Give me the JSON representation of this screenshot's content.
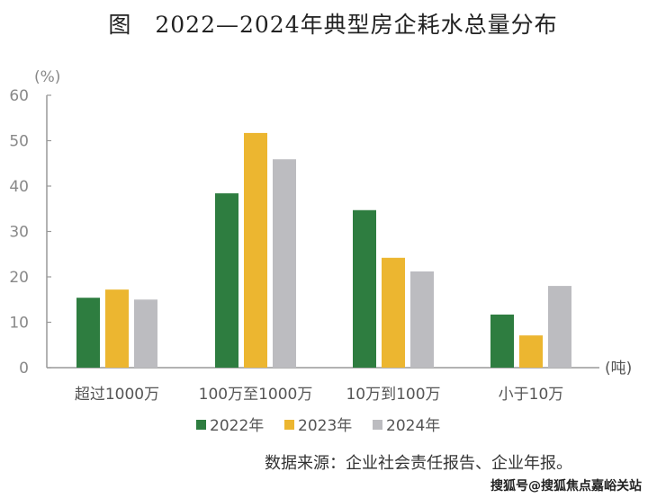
{
  "chart_data": {
    "type": "bar",
    "title": "图　2022—2024年典型房企耗水总量分布",
    "ylabel": "(%)",
    "xlabel": "(吨)",
    "ylim": [
      0,
      60
    ],
    "yticks": [
      0,
      10,
      20,
      30,
      40,
      50,
      60
    ],
    "grid": false,
    "legend_position": "bottom",
    "categories": [
      "超过1000万",
      "100万至1000万",
      "10万到100万",
      "小于10万"
    ],
    "series": [
      {
        "name": "2022年",
        "color": "#2e7d40",
        "values": [
          15.4,
          38.4,
          34.7,
          11.7
        ]
      },
      {
        "name": "2023年",
        "color": "#ecb630",
        "values": [
          17.2,
          51.7,
          24.2,
          7.1
        ]
      },
      {
        "name": "2024年",
        "color": "#bcbcc0",
        "values": [
          15.0,
          45.9,
          21.2,
          18.0
        ]
      }
    ]
  },
  "source": "数据来源：企业社会责任报告、企业年报。",
  "watermark": "搜狐号@搜狐焦点嘉峪关站"
}
